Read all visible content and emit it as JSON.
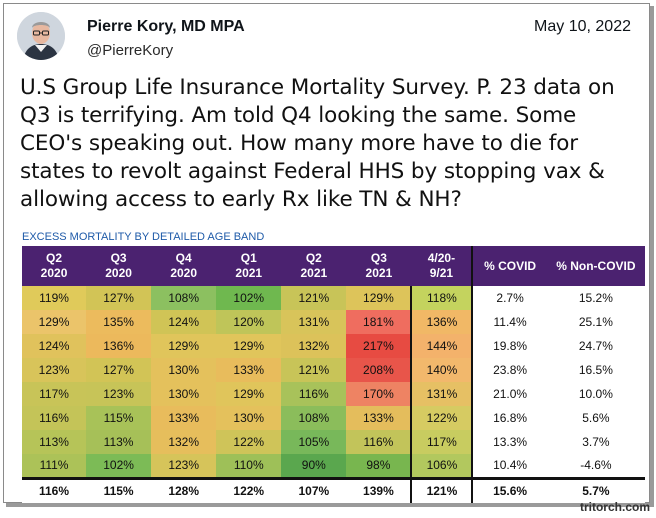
{
  "tweet": {
    "author_name": "Pierre Kory, MD MPA",
    "handle": "@PierreKory",
    "date": "May 10, 2022",
    "text": "U.S Group Life Insurance Mortality Survey. P. 23 data on Q3 is terrifying. Am told Q4 looking the same. Some CEO's speaking out. How many more have to die for states to revolt against Federal HHS by stopping vax & allowing access to early Rx like TN & NH?"
  },
  "table": {
    "caption": "EXCESS MORTALITY BY DETAILED AGE BAND",
    "headers": [
      [
        "Q2",
        "2020"
      ],
      [
        "Q3",
        "2020"
      ],
      [
        "Q4",
        "2020"
      ],
      [
        "Q1",
        "2021"
      ],
      [
        "Q2",
        "2021"
      ],
      [
        "Q3",
        "2021"
      ],
      [
        "4/20-",
        "9/21"
      ],
      [
        "% COVID",
        ""
      ],
      [
        "% Non-COVID",
        ""
      ]
    ],
    "rows": [
      [
        "119%",
        "127%",
        "108%",
        "102%",
        "121%",
        "129%",
        "118%",
        "2.7%",
        "15.2%"
      ],
      [
        "129%",
        "135%",
        "124%",
        "120%",
        "131%",
        "181%",
        "136%",
        "11.4%",
        "25.1%"
      ],
      [
        "124%",
        "136%",
        "129%",
        "129%",
        "132%",
        "217%",
        "144%",
        "19.8%",
        "24.7%"
      ],
      [
        "123%",
        "127%",
        "130%",
        "133%",
        "121%",
        "208%",
        "140%",
        "23.8%",
        "16.5%"
      ],
      [
        "117%",
        "123%",
        "130%",
        "129%",
        "116%",
        "170%",
        "131%",
        "21.0%",
        "10.0%"
      ],
      [
        "116%",
        "115%",
        "133%",
        "130%",
        "108%",
        "133%",
        "122%",
        "16.8%",
        "5.6%"
      ],
      [
        "113%",
        "113%",
        "132%",
        "122%",
        "105%",
        "116%",
        "117%",
        "13.3%",
        "3.7%"
      ],
      [
        "111%",
        "102%",
        "123%",
        "110%",
        "90%",
        "98%",
        "106%",
        "10.4%",
        "-4.6%"
      ]
    ],
    "total": [
      "116%",
      "115%",
      "128%",
      "122%",
      "107%",
      "139%",
      "121%",
      "15.6%",
      "5.7%"
    ],
    "row_colors": [
      [
        "#e0ca5a",
        "#d2c456",
        "#8cc060",
        "#6fb84f",
        "#c8c458",
        "#ddc45a",
        "#c4d35e"
      ],
      [
        "#ebc46a",
        "#ecbb5d",
        "#d0c456",
        "#bfc559",
        "#d8c45a",
        "#ef6d5f",
        "#f1b866"
      ],
      [
        "#e0c25c",
        "#ecb95c",
        "#e0c55b",
        "#e0c55b",
        "#dcc25a",
        "#e74b42",
        "#f3b26b"
      ],
      [
        "#d8c45a",
        "#d2c456",
        "#e4c15c",
        "#e8bc5c",
        "#c8c458",
        "#e8554a",
        "#f2b86c"
      ],
      [
        "#c8c458",
        "#c7c458",
        "#e4c15c",
        "#e0c55b",
        "#a8c25a",
        "#ee8363",
        "#e6c064"
      ],
      [
        "#c4c458",
        "#a8c258",
        "#e8bc5c",
        "#e4c15c",
        "#8bbd5b",
        "#e4bd5c",
        "#d6cb62"
      ],
      [
        "#b6c458",
        "#a6c058",
        "#e6be5c",
        "#cfc459",
        "#78b85a",
        "#c2c45a",
        "#c8cc60"
      ],
      [
        "#acc258",
        "#7cbb56",
        "#d6c45a",
        "#9ec058",
        "#5aa74e",
        "#78b64f",
        "#b2c85e"
      ]
    ],
    "total_colors": [
      "#ffffff",
      "#ffffff",
      "#ffffff",
      "#ffffff",
      "#ffffff",
      "#ffffff",
      "#ffffff"
    ]
  },
  "footer": {
    "watermark": "tritorch.com"
  }
}
